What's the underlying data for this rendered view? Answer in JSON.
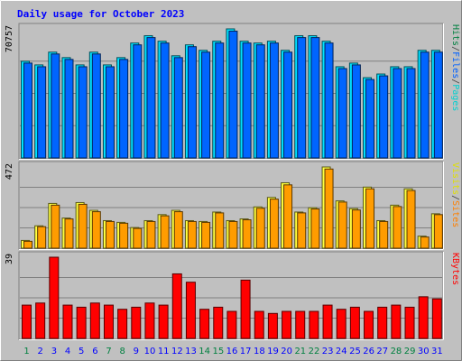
{
  "chart_data": {
    "type": "bar",
    "title": "Daily usage for October 2023",
    "categories": [
      "1",
      "2",
      "3",
      "4",
      "5",
      "6",
      "7",
      "8",
      "9",
      "10",
      "11",
      "12",
      "13",
      "14",
      "15",
      "16",
      "17",
      "18",
      "19",
      "20",
      "21",
      "22",
      "23",
      "24",
      "25",
      "26",
      "27",
      "28",
      "29",
      "30",
      "31"
    ],
    "weekend_days": [
      "1",
      "7",
      "8",
      "14",
      "15",
      "21",
      "22",
      "28",
      "29"
    ],
    "panels": [
      {
        "id": "hits",
        "scale_label": "70757",
        "ylim": [
          0,
          70757
        ],
        "legend": [
          "Pages",
          "/",
          "Files",
          "/",
          "Hits"
        ],
        "series": [
          {
            "name": "Hits",
            "color": "#00e1ff",
            "values": [
              53000,
              51000,
              58000,
              55000,
              51000,
              58000,
              51000,
              55000,
              63000,
              67000,
              64000,
              56000,
              62000,
              59000,
              64000,
              70757,
              64000,
              63000,
              64000,
              59000,
              67000,
              67000,
              64000,
              50000,
              52000,
              44000,
              46000,
              50000,
              50000,
              59000,
              59000
            ]
          },
          {
            "name": "Files",
            "color": "#0065ff",
            "values": [
              52000,
              50000,
              57000,
              54000,
              50000,
              57000,
              50000,
              54000,
              62000,
              66000,
              63000,
              55000,
              61000,
              58000,
              63000,
              69500,
              63000,
              62000,
              63000,
              58000,
              66000,
              66000,
              63000,
              49000,
              51000,
              43000,
              45000,
              49000,
              49000,
              58000,
              58000
            ]
          }
        ]
      },
      {
        "id": "visits",
        "scale_label": "472",
        "ylim": [
          0,
          472
        ],
        "legend": [
          "Sites",
          "/",
          "Visits"
        ],
        "series": [
          {
            "name": "Visits",
            "color": "#ffff3f",
            "values": [
              45,
              130,
              260,
              175,
              265,
              220,
              160,
              150,
              120,
              160,
              195,
              220,
              160,
              155,
              210,
              160,
              170,
              240,
              295,
              380,
              210,
              235,
              472,
              275,
              230,
              355,
              160,
              250,
              345,
              70,
              200
            ]
          },
          {
            "name": "Sites",
            "color": "#ff9c00",
            "values": [
              40,
              125,
              250,
              170,
              255,
              212,
              155,
              145,
              115,
              155,
              188,
              212,
              155,
              150,
              205,
              155,
              165,
              232,
              285,
              368,
              205,
              228,
              460,
              268,
              222,
              345,
              155,
              242,
              335,
              65,
              195
            ]
          }
        ]
      },
      {
        "id": "kbytes",
        "scale_label": "39",
        "ylim": [
          0,
          39
        ],
        "legend": [
          "KBytes"
        ],
        "series": [
          {
            "name": "KBytes",
            "color": "#ff0000",
            "values": [
              16,
              17,
              39,
              16,
              15,
              17,
              16,
              14,
              15,
              17,
              16,
              31,
              27,
              14,
              15,
              13,
              28,
              13,
              12,
              13,
              13,
              13,
              16,
              14,
              15,
              13,
              15,
              16,
              15,
              20,
              19
            ]
          }
        ]
      }
    ],
    "legend_colors": {
      "Pages": "#00d0d0",
      "Files": "#0060ff",
      "Hits": "#008040",
      "Sites": "#ff8000",
      "Visits": "#e0e000",
      "KBytes": "#ff0000",
      "separator": "#404040"
    },
    "colors": {
      "background": "#c0c0c0",
      "title": "#0000ff",
      "weekday_label": "#0000ff",
      "weekend_label": "#008040",
      "grid": "#808080"
    }
  }
}
